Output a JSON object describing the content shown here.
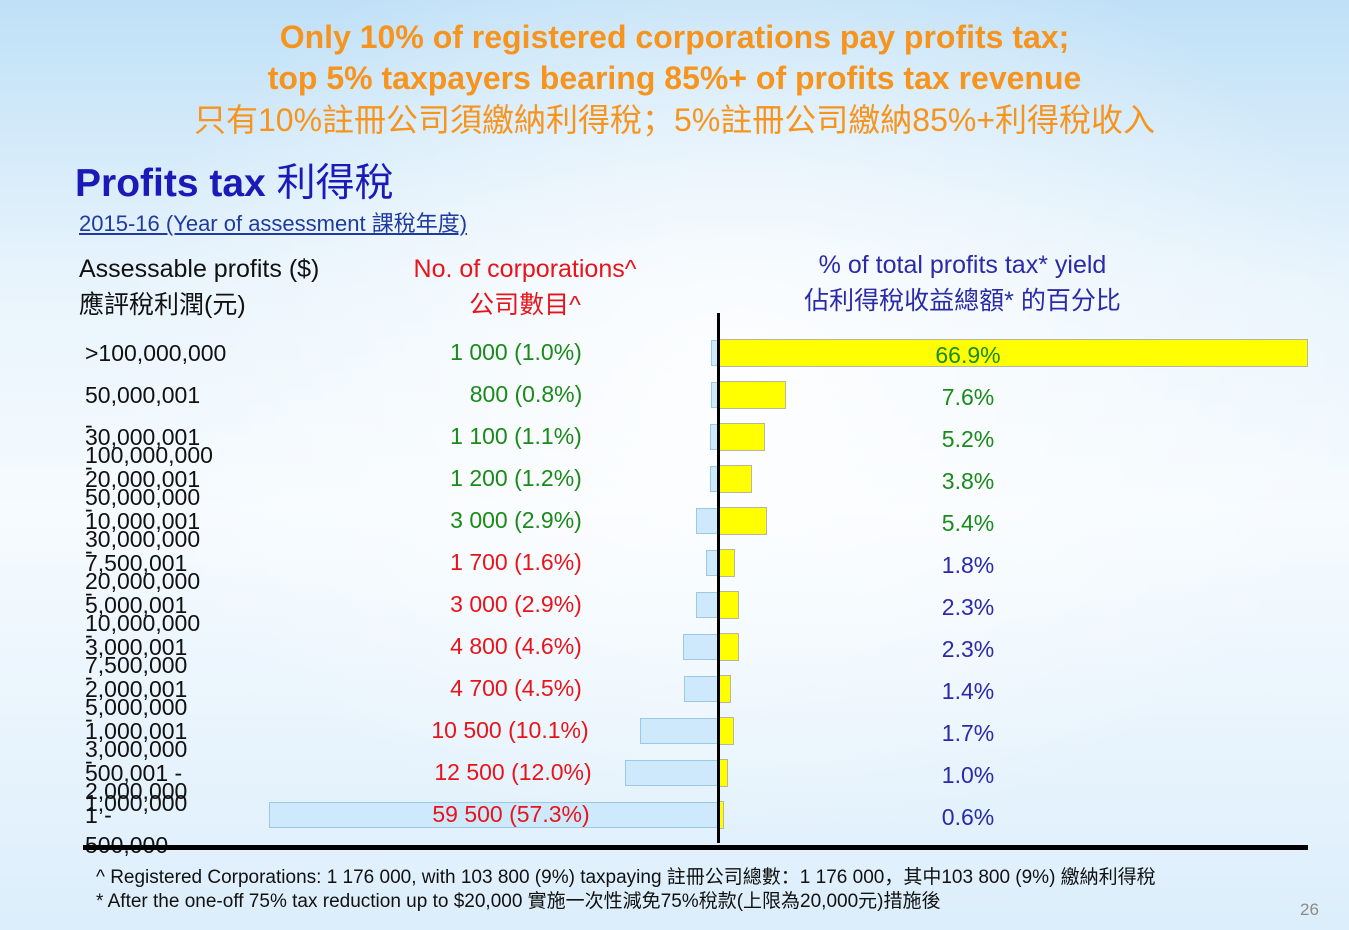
{
  "header": {
    "line1": "Only 10% of registered corporations pay profits tax;",
    "line2": "top 5% taxpayers bearing 85%+ of profits tax revenue",
    "line3": "只有10%註冊公司須繳納利得稅；5%註冊公司繳納85%+利得稅收入"
  },
  "section_title": {
    "en": "Profits tax",
    "zh": "利得稅"
  },
  "year_label": "2015-16 (Year of assessment 課稅年度)",
  "columns": {
    "profits_en": "Assessable profits ($)",
    "profits_zh": "應評稅利潤(元)",
    "corps_en": "No. of corporations^",
    "corps_zh": "公司數目^",
    "yield_en": "% of total profits tax* yield",
    "yield_zh": "佔利得稅收益總額* 的百分比"
  },
  "colors": {
    "headline": "#f7941d",
    "title": "#1a1ab8",
    "yield_bar": "#ffff00",
    "corp_bar": "#cde9fb",
    "green": "#1a8a1a",
    "red": "#e8141b",
    "blue": "#2a2aa8"
  },
  "chart_data": {
    "type": "bar",
    "categories": [
      ">100,000,000",
      "50,000,001 - 100,000,000",
      "30,000,001 - 50,000,000",
      "20,000,001 - 30,000,000",
      "10,000,001 - 20,000,000",
      "7,500,001 - 10,000,000",
      "5,000,001 - 7,500,000",
      "3,000,001 - 5,000,000",
      "2,000,001 - 3,000,000",
      "1,000,001 - 2,000,000",
      "500,001 - 1,000,000",
      "1 - 500,000"
    ],
    "corporations": [
      {
        "label": "1 000 (1.0%)",
        "count": 1000,
        "pct": 1.0
      },
      {
        "label": "800 (0.8%)",
        "count": 800,
        "pct": 0.8
      },
      {
        "label": "1 100 (1.1%)",
        "count": 1100,
        "pct": 1.1
      },
      {
        "label": "1 200 (1.2%)",
        "count": 1200,
        "pct": 1.2
      },
      {
        "label": "3 000 (2.9%)",
        "count": 3000,
        "pct": 2.9
      },
      {
        "label": "1 700 (1.6%)",
        "count": 1700,
        "pct": 1.6
      },
      {
        "label": "3 000 (2.9%)",
        "count": 3000,
        "pct": 2.9
      },
      {
        "label": "4 800 (4.6%)",
        "count": 4800,
        "pct": 4.6
      },
      {
        "label": "4 700 (4.5%)",
        "count": 4700,
        "pct": 4.5
      },
      {
        "label": "10 500 (10.1%)",
        "count": 10500,
        "pct": 10.1
      },
      {
        "label": "12 500 (12.0%)",
        "count": 12500,
        "pct": 12.0
      },
      {
        "label": "59 500 (57.3%)",
        "count": 59500,
        "pct": 57.3
      }
    ],
    "yield": [
      {
        "label": "66.9%",
        "pct": 66.9
      },
      {
        "label": "7.6%",
        "pct": 7.6
      },
      {
        "label": "5.2%",
        "pct": 5.2
      },
      {
        "label": "3.8%",
        "pct": 3.8
      },
      {
        "label": "5.4%",
        "pct": 5.4
      },
      {
        "label": "1.8%",
        "pct": 1.8
      },
      {
        "label": "2.3%",
        "pct": 2.3
      },
      {
        "label": "2.3%",
        "pct": 2.3
      },
      {
        "label": "1.4%",
        "pct": 1.4
      },
      {
        "label": "1.7%",
        "pct": 1.7
      },
      {
        "label": "1.0%",
        "pct": 1.0
      },
      {
        "label": "0.6%",
        "pct": 0.6
      }
    ],
    "corp_label_colors": [
      "green",
      "green",
      "green",
      "green",
      "green",
      "red",
      "red",
      "red",
      "red",
      "red",
      "red",
      "red"
    ],
    "yield_label_colors": [
      "green",
      "green",
      "green",
      "green",
      "green",
      "blue",
      "blue",
      "blue",
      "blue",
      "blue",
      "blue",
      "blue"
    ]
  },
  "footnotes": {
    "note1": "^ Registered Corporations: 1 176 000, with 103 800 (9%) taxpaying  註冊公司總數：1 176 000，其中103 800 (9%) 繳納利得稅",
    "note2": "* After the one-off 75% tax reduction up to $20,000  實施一次性減免75%稅款(上限為20,000元)措施後"
  },
  "page_number": "26"
}
